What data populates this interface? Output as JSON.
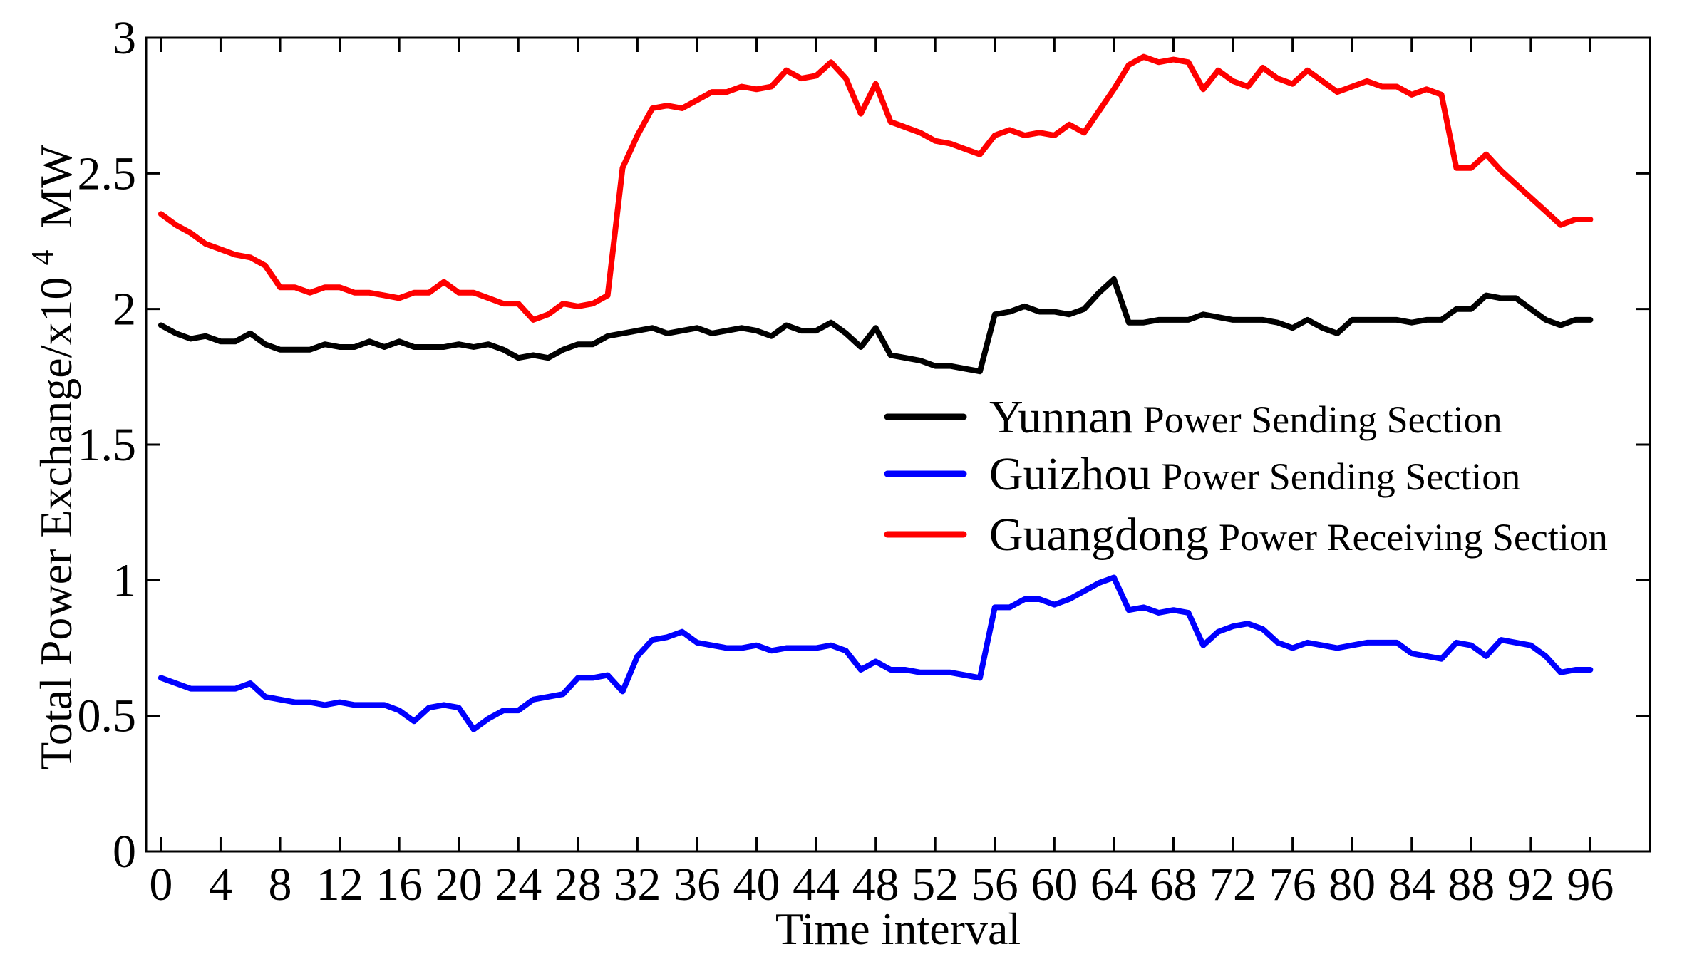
{
  "chart_data": {
    "type": "line",
    "xlabel": "Time interval",
    "ylabel": "Total Power Exchange/x10",
    "ylabel_superscript": "4",
    "ylabel_unit": "MW",
    "xlim": [
      -1,
      100
    ],
    "ylim": [
      0,
      3
    ],
    "x_ticks": [
      0,
      4,
      8,
      12,
      16,
      20,
      24,
      28,
      32,
      36,
      40,
      44,
      48,
      52,
      56,
      60,
      64,
      68,
      72,
      76,
      80,
      84,
      88,
      92,
      96
    ],
    "x_tick_labels": [
      "0",
      "4",
      "8",
      "12",
      "16",
      "20",
      "24",
      "28",
      "32",
      "36",
      "40",
      "44",
      "48",
      "52",
      "56",
      "60",
      "64",
      "68",
      "72",
      "76",
      "80",
      "84",
      "88",
      "92",
      "96"
    ],
    "y_ticks": [
      0,
      0.5,
      1,
      1.5,
      2,
      2.5,
      3
    ],
    "y_tick_labels": [
      "0",
      "0.5",
      "1",
      "1.5",
      "2",
      "2.5",
      "3"
    ],
    "grid": false,
    "legend_position": "center-right",
    "x": [
      0,
      1,
      2,
      3,
      4,
      5,
      6,
      7,
      8,
      9,
      10,
      11,
      12,
      13,
      14,
      15,
      16,
      17,
      18,
      19,
      20,
      21,
      22,
      23,
      24,
      25,
      26,
      27,
      28,
      29,
      30,
      31,
      32,
      33,
      34,
      35,
      36,
      37,
      38,
      39,
      40,
      41,
      42,
      43,
      44,
      45,
      46,
      47,
      48,
      49,
      50,
      51,
      52,
      53,
      54,
      55,
      56,
      57,
      58,
      59,
      60,
      61,
      62,
      63,
      64,
      65,
      66,
      67,
      68,
      69,
      70,
      71,
      72,
      73,
      74,
      75,
      76,
      77,
      78,
      79,
      80,
      81,
      82,
      83,
      84,
      85,
      86,
      87,
      88,
      89,
      90,
      91,
      92,
      93,
      94,
      95,
      96
    ],
    "series": [
      {
        "name_prefix": "Yunnan",
        "name_suffix": "Power Sending Section",
        "color": "#000000",
        "values": [
          1.94,
          1.91,
          1.89,
          1.9,
          1.88,
          1.88,
          1.91,
          1.87,
          1.85,
          1.85,
          1.85,
          1.87,
          1.86,
          1.86,
          1.88,
          1.86,
          1.88,
          1.86,
          1.86,
          1.86,
          1.87,
          1.86,
          1.87,
          1.85,
          1.82,
          1.83,
          1.82,
          1.85,
          1.87,
          1.87,
          1.9,
          1.91,
          1.92,
          1.93,
          1.91,
          1.92,
          1.93,
          1.91,
          1.92,
          1.93,
          1.92,
          1.9,
          1.94,
          1.92,
          1.92,
          1.95,
          1.91,
          1.86,
          1.93,
          1.83,
          1.82,
          1.81,
          1.79,
          1.79,
          1.78,
          1.77,
          1.98,
          1.99,
          2.01,
          1.99,
          1.99,
          1.98,
          2.0,
          2.06,
          2.11,
          1.95,
          1.95,
          1.96,
          1.96,
          1.96,
          1.98,
          1.97,
          1.96,
          1.96,
          1.96,
          1.95,
          1.93,
          1.96,
          1.93,
          1.91,
          1.96,
          1.96,
          1.96,
          1.96,
          1.95,
          1.96,
          1.96,
          2.0,
          2.0,
          2.05,
          2.04,
          2.04,
          2.0,
          1.96,
          1.94,
          1.96,
          1.96
        ]
      },
      {
        "name_prefix": "Guizhou",
        "name_suffix": "Power Sending Section",
        "color": "#0000ff",
        "values": [
          0.64,
          0.62,
          0.6,
          0.6,
          0.6,
          0.6,
          0.62,
          0.57,
          0.56,
          0.55,
          0.55,
          0.54,
          0.55,
          0.54,
          0.54,
          0.54,
          0.52,
          0.48,
          0.53,
          0.54,
          0.53,
          0.45,
          0.49,
          0.52,
          0.52,
          0.56,
          0.57,
          0.58,
          0.64,
          0.64,
          0.65,
          0.59,
          0.72,
          0.78,
          0.79,
          0.81,
          0.77,
          0.76,
          0.75,
          0.75,
          0.76,
          0.74,
          0.75,
          0.75,
          0.75,
          0.76,
          0.74,
          0.67,
          0.7,
          0.67,
          0.67,
          0.66,
          0.66,
          0.66,
          0.65,
          0.64,
          0.9,
          0.9,
          0.93,
          0.93,
          0.91,
          0.93,
          0.96,
          0.99,
          1.01,
          0.89,
          0.9,
          0.88,
          0.89,
          0.88,
          0.76,
          0.81,
          0.83,
          0.84,
          0.82,
          0.77,
          0.75,
          0.77,
          0.76,
          0.75,
          0.76,
          0.77,
          0.77,
          0.77,
          0.73,
          0.72,
          0.71,
          0.77,
          0.76,
          0.72,
          0.78,
          0.77,
          0.76,
          0.72,
          0.66,
          0.67,
          0.67
        ]
      },
      {
        "name_prefix": "Guangdong",
        "name_suffix": "Power Receiving Section",
        "color": "#ff0000",
        "values": [
          2.35,
          2.31,
          2.28,
          2.24,
          2.22,
          2.2,
          2.19,
          2.16,
          2.08,
          2.08,
          2.06,
          2.08,
          2.08,
          2.06,
          2.06,
          2.05,
          2.04,
          2.06,
          2.06,
          2.1,
          2.06,
          2.06,
          2.04,
          2.02,
          2.02,
          1.96,
          1.98,
          2.02,
          2.01,
          2.02,
          2.05,
          2.52,
          2.64,
          2.74,
          2.75,
          2.74,
          2.77,
          2.8,
          2.8,
          2.82,
          2.81,
          2.82,
          2.88,
          2.85,
          2.86,
          2.91,
          2.85,
          2.72,
          2.83,
          2.69,
          2.67,
          2.65,
          2.62,
          2.61,
          2.59,
          2.57,
          2.64,
          2.66,
          2.64,
          2.65,
          2.64,
          2.68,
          2.65,
          2.73,
          2.81,
          2.9,
          2.93,
          2.91,
          2.92,
          2.91,
          2.81,
          2.88,
          2.84,
          2.82,
          2.89,
          2.85,
          2.83,
          2.88,
          2.84,
          2.8,
          2.82,
          2.84,
          2.82,
          2.82,
          2.79,
          2.81,
          2.79,
          2.52,
          2.52,
          2.57,
          2.51,
          2.46,
          2.41,
          2.36,
          2.31,
          2.33,
          2.33
        ]
      }
    ]
  }
}
